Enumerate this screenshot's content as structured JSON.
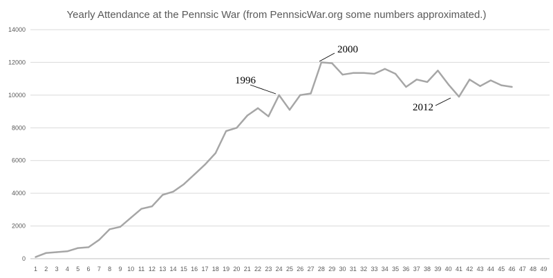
{
  "chart_data": {
    "type": "line",
    "title": "Yearly Attendance at the Pennsic War (from PennsicWar.org some numbers approximated.)",
    "xlabel": "",
    "ylabel": "",
    "x": [
      1,
      2,
      3,
      4,
      5,
      6,
      7,
      8,
      9,
      10,
      11,
      12,
      13,
      14,
      15,
      16,
      17,
      18,
      19,
      20,
      21,
      22,
      23,
      24,
      25,
      26,
      27,
      28,
      29,
      30,
      31,
      32,
      33,
      34,
      35,
      36,
      37,
      38,
      39,
      40,
      41,
      42,
      43,
      44,
      45,
      46
    ],
    "x_ticks": [
      1,
      2,
      3,
      4,
      5,
      6,
      7,
      8,
      9,
      10,
      11,
      12,
      13,
      14,
      15,
      16,
      17,
      18,
      19,
      20,
      21,
      22,
      23,
      24,
      25,
      26,
      27,
      28,
      29,
      30,
      31,
      32,
      33,
      34,
      35,
      36,
      37,
      38,
      39,
      40,
      41,
      42,
      43,
      44,
      45,
      46,
      47,
      48,
      49
    ],
    "xlim": [
      1,
      49
    ],
    "ylim": [
      0,
      14000
    ],
    "y_ticks": [
      0,
      2000,
      4000,
      6000,
      8000,
      10000,
      12000,
      14000
    ],
    "series": [
      {
        "values": [
          100,
          350,
          400,
          450,
          650,
          700,
          1150,
          1800,
          1950,
          2500,
          3050,
          3200,
          3900,
          4100,
          4550,
          5150,
          5750,
          6450,
          7800,
          8000,
          8750,
          9200,
          8700,
          10000,
          9100,
          10000,
          10100,
          12000,
          11950,
          11250,
          11350,
          11350,
          11300,
          11600,
          11300,
          10500,
          10950,
          10800,
          11500,
          10650,
          9900,
          10950,
          10550,
          10900,
          10600,
          10500
        ],
        "color": "#a6a6a6"
      }
    ],
    "annotations": [
      {
        "text": "1996",
        "x": 24,
        "y": 10000
      },
      {
        "text": "2000",
        "x": 28,
        "y": 12000
      },
      {
        "text": "2012",
        "x": 41,
        "y": 9900
      }
    ],
    "grid": true,
    "legend": "none"
  }
}
